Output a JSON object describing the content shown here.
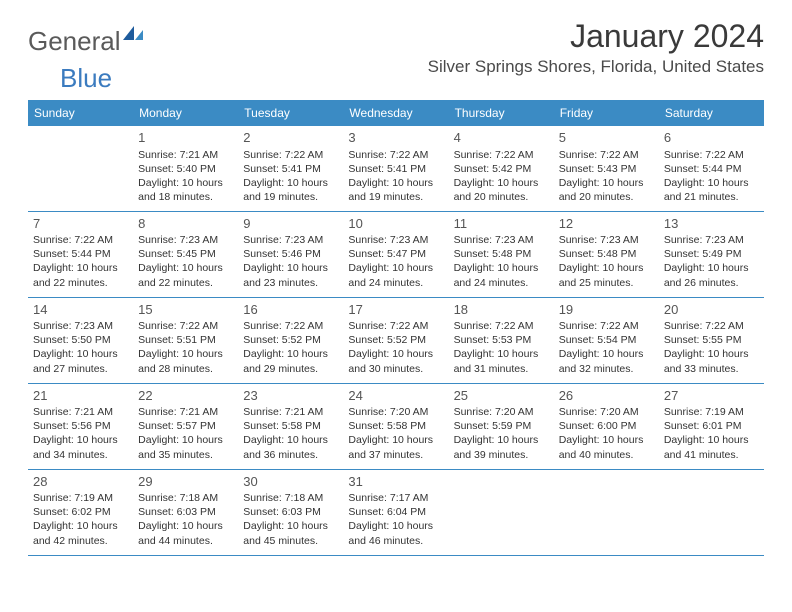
{
  "logo": {
    "text1": "General",
    "text2": "Blue"
  },
  "title": "January 2024",
  "location": "Silver Springs Shores, Florida, United States",
  "colors": {
    "header_bg": "#3b8bc4",
    "header_text": "#ffffff",
    "border": "#3b8bc4",
    "logo_gray": "#5a5a5a",
    "logo_blue": "#3b7bbf",
    "text": "#333333"
  },
  "day_headers": [
    "Sunday",
    "Monday",
    "Tuesday",
    "Wednesday",
    "Thursday",
    "Friday",
    "Saturday"
  ],
  "weeks": [
    [
      null,
      {
        "n": "1",
        "sr": "7:21 AM",
        "ss": "5:40 PM",
        "dl": "10 hours and 18 minutes."
      },
      {
        "n": "2",
        "sr": "7:22 AM",
        "ss": "5:41 PM",
        "dl": "10 hours and 19 minutes."
      },
      {
        "n": "3",
        "sr": "7:22 AM",
        "ss": "5:41 PM",
        "dl": "10 hours and 19 minutes."
      },
      {
        "n": "4",
        "sr": "7:22 AM",
        "ss": "5:42 PM",
        "dl": "10 hours and 20 minutes."
      },
      {
        "n": "5",
        "sr": "7:22 AM",
        "ss": "5:43 PM",
        "dl": "10 hours and 20 minutes."
      },
      {
        "n": "6",
        "sr": "7:22 AM",
        "ss": "5:44 PM",
        "dl": "10 hours and 21 minutes."
      }
    ],
    [
      {
        "n": "7",
        "sr": "7:22 AM",
        "ss": "5:44 PM",
        "dl": "10 hours and 22 minutes."
      },
      {
        "n": "8",
        "sr": "7:23 AM",
        "ss": "5:45 PM",
        "dl": "10 hours and 22 minutes."
      },
      {
        "n": "9",
        "sr": "7:23 AM",
        "ss": "5:46 PM",
        "dl": "10 hours and 23 minutes."
      },
      {
        "n": "10",
        "sr": "7:23 AM",
        "ss": "5:47 PM",
        "dl": "10 hours and 24 minutes."
      },
      {
        "n": "11",
        "sr": "7:23 AM",
        "ss": "5:48 PM",
        "dl": "10 hours and 24 minutes."
      },
      {
        "n": "12",
        "sr": "7:23 AM",
        "ss": "5:48 PM",
        "dl": "10 hours and 25 minutes."
      },
      {
        "n": "13",
        "sr": "7:23 AM",
        "ss": "5:49 PM",
        "dl": "10 hours and 26 minutes."
      }
    ],
    [
      {
        "n": "14",
        "sr": "7:23 AM",
        "ss": "5:50 PM",
        "dl": "10 hours and 27 minutes."
      },
      {
        "n": "15",
        "sr": "7:22 AM",
        "ss": "5:51 PM",
        "dl": "10 hours and 28 minutes."
      },
      {
        "n": "16",
        "sr": "7:22 AM",
        "ss": "5:52 PM",
        "dl": "10 hours and 29 minutes."
      },
      {
        "n": "17",
        "sr": "7:22 AM",
        "ss": "5:52 PM",
        "dl": "10 hours and 30 minutes."
      },
      {
        "n": "18",
        "sr": "7:22 AM",
        "ss": "5:53 PM",
        "dl": "10 hours and 31 minutes."
      },
      {
        "n": "19",
        "sr": "7:22 AM",
        "ss": "5:54 PM",
        "dl": "10 hours and 32 minutes."
      },
      {
        "n": "20",
        "sr": "7:22 AM",
        "ss": "5:55 PM",
        "dl": "10 hours and 33 minutes."
      }
    ],
    [
      {
        "n": "21",
        "sr": "7:21 AM",
        "ss": "5:56 PM",
        "dl": "10 hours and 34 minutes."
      },
      {
        "n": "22",
        "sr": "7:21 AM",
        "ss": "5:57 PM",
        "dl": "10 hours and 35 minutes."
      },
      {
        "n": "23",
        "sr": "7:21 AM",
        "ss": "5:58 PM",
        "dl": "10 hours and 36 minutes."
      },
      {
        "n": "24",
        "sr": "7:20 AM",
        "ss": "5:58 PM",
        "dl": "10 hours and 37 minutes."
      },
      {
        "n": "25",
        "sr": "7:20 AM",
        "ss": "5:59 PM",
        "dl": "10 hours and 39 minutes."
      },
      {
        "n": "26",
        "sr": "7:20 AM",
        "ss": "6:00 PM",
        "dl": "10 hours and 40 minutes."
      },
      {
        "n": "27",
        "sr": "7:19 AM",
        "ss": "6:01 PM",
        "dl": "10 hours and 41 minutes."
      }
    ],
    [
      {
        "n": "28",
        "sr": "7:19 AM",
        "ss": "6:02 PM",
        "dl": "10 hours and 42 minutes."
      },
      {
        "n": "29",
        "sr": "7:18 AM",
        "ss": "6:03 PM",
        "dl": "10 hours and 44 minutes."
      },
      {
        "n": "30",
        "sr": "7:18 AM",
        "ss": "6:03 PM",
        "dl": "10 hours and 45 minutes."
      },
      {
        "n": "31",
        "sr": "7:17 AM",
        "ss": "6:04 PM",
        "dl": "10 hours and 46 minutes."
      },
      null,
      null,
      null
    ]
  ],
  "labels": {
    "sunrise": "Sunrise: ",
    "sunset": "Sunset: ",
    "daylight": "Daylight: "
  }
}
